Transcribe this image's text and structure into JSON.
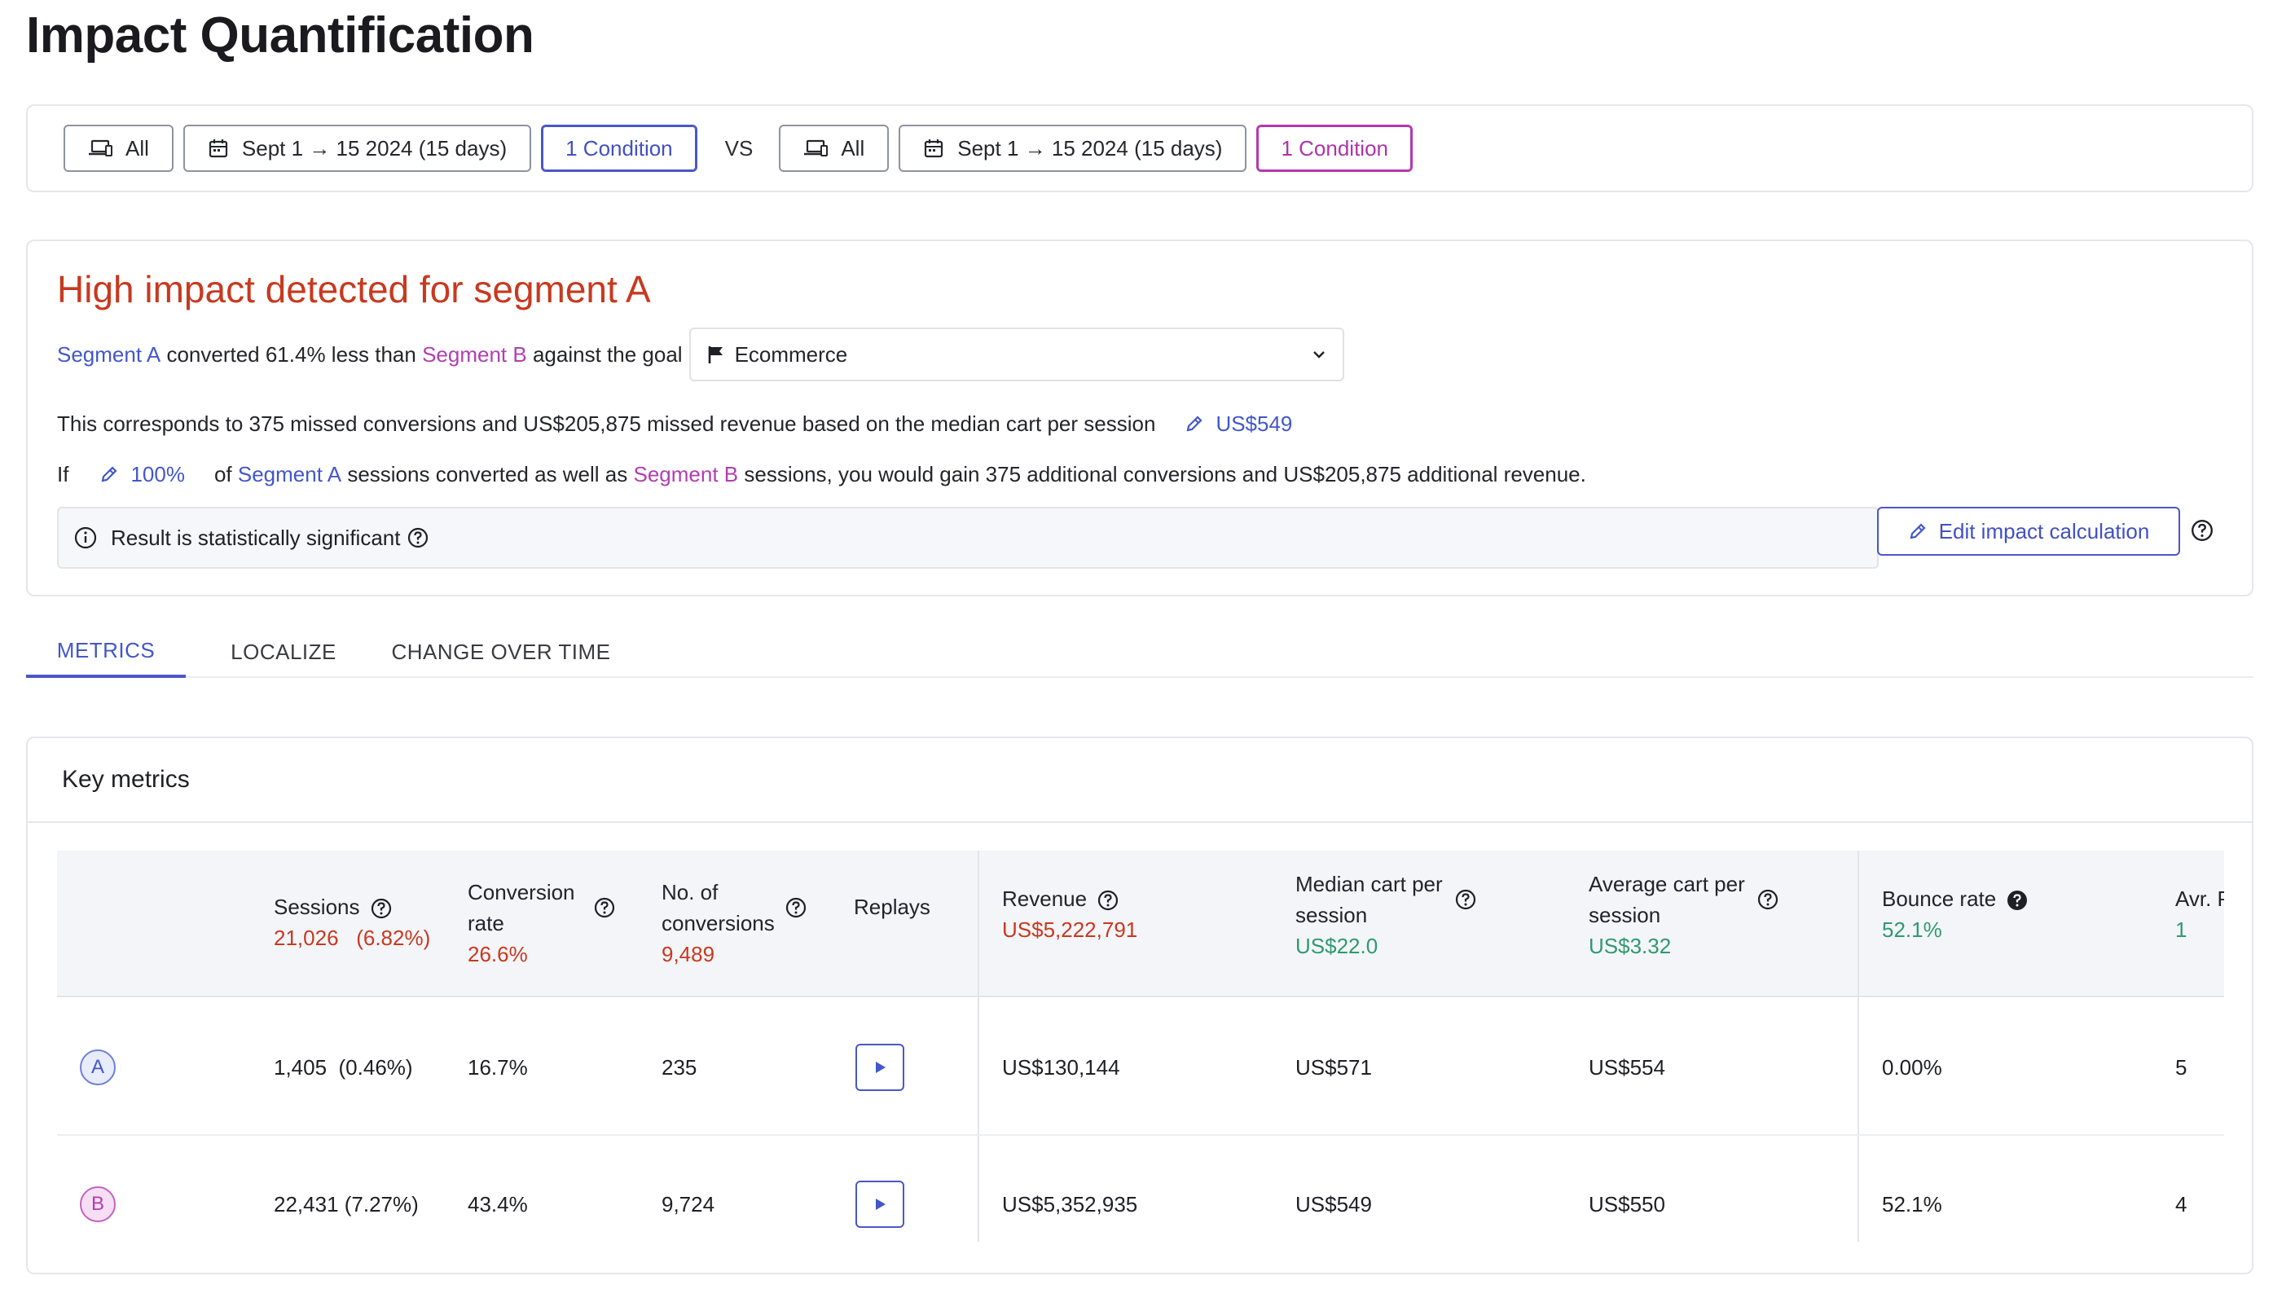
{
  "page": {
    "title": "Impact Quantification"
  },
  "filters": {
    "segment_a": {
      "device_label": "All",
      "date_label": "Sept 1 → 15 2024 (15 days)",
      "condition_label": "1 Condition"
    },
    "vs_label": "VS",
    "segment_b": {
      "device_label": "All",
      "date_label": "Sept 1 → 15 2024 (15 days)",
      "condition_label": "1 Condition"
    }
  },
  "impact": {
    "title": "High impact detected for segment A",
    "line1": {
      "segment_a": "Segment A",
      "mid": "converted 61.4% less than",
      "segment_b": "Segment B",
      "tail": "against the goal"
    },
    "goal": {
      "selected": "Ecommerce"
    },
    "line2": {
      "text": "This corresponds to 375 missed conversions and US$205,875 missed revenue based on the median cart per session",
      "cart_value": "US$549"
    },
    "line3": {
      "prefix": "If",
      "percent": "100%",
      "of": "of",
      "segment_a": "Segment A",
      "mid": "sessions converted as well as",
      "segment_b": "Segment B",
      "tail": "sessions, you would gain 375 additional conversions and US$205,875 additional revenue."
    },
    "significance": "Result is statistically significant",
    "edit_button": "Edit impact calculation"
  },
  "tabs": [
    {
      "label": "METRICS",
      "active": true
    },
    {
      "label": "LOCALIZE",
      "active": false
    },
    {
      "label": "CHANGE OVER TIME",
      "active": false
    }
  ],
  "key_metrics": {
    "title": "Key metrics",
    "columns": {
      "sessions": {
        "label": "Sessions",
        "total": "21,026",
        "total_pct": "(6.82%)"
      },
      "conversion_rate": {
        "label_line1": "Conversion",
        "label_line2": "rate",
        "total": "26.6%"
      },
      "conversions": {
        "label_line1": "No. of",
        "label_line2": "conversions",
        "total": "9,489"
      },
      "replays": {
        "label": "Replays"
      },
      "revenue": {
        "label": "Revenue",
        "total": "US$5,222,791"
      },
      "median_cart": {
        "label_line1": "Median cart per",
        "label_line2": "session",
        "total": "US$22.0"
      },
      "average_cart": {
        "label_line1": "Average cart per",
        "label_line2": "session",
        "total": "US$3.32"
      },
      "bounce_rate": {
        "label": "Bounce rate",
        "total": "52.1%"
      },
      "avg_pages": {
        "label": "Avr. Pag",
        "total": "1"
      }
    },
    "rows": [
      {
        "segment": "A",
        "sessions": "1,405  (0.46%)",
        "conversion_rate": "16.7%",
        "conversions": "235",
        "revenue": "US$130,144",
        "median_cart": "US$571",
        "average_cart": "US$554",
        "bounce_rate": "0.00%",
        "avg_pages": "5"
      },
      {
        "segment": "B",
        "sessions": "22,431 (7.27%)",
        "conversion_rate": "43.4%",
        "conversions": "9,724",
        "revenue": "US$5,352,935",
        "median_cart": "US$549",
        "average_cart": "US$550",
        "bounce_rate": "52.1%",
        "avg_pages": "4"
      }
    ]
  },
  "colors": {
    "segment_a": "#4357c9",
    "segment_b": "#b23eb0",
    "alert_red": "#c8391f",
    "positive_green": "#2f9a6d"
  }
}
